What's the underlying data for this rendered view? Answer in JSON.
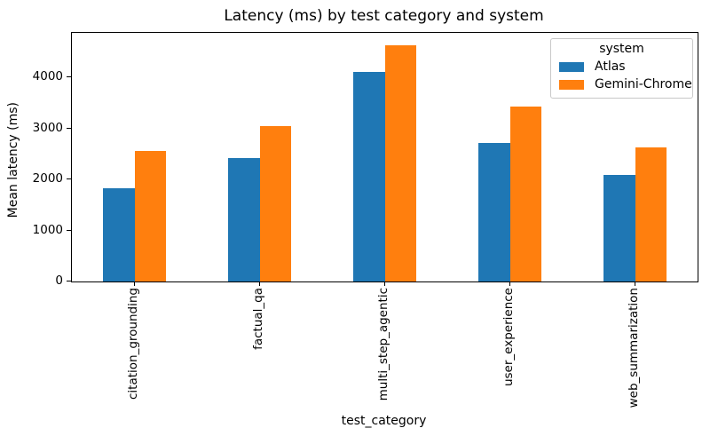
{
  "chart_data": {
    "type": "bar",
    "title": "Latency (ms) by test category and system",
    "xlabel": "test_category",
    "ylabel": "Mean latency (ms)",
    "categories": [
      "citation_grounding",
      "factual_qa",
      "multi_step_agentic",
      "user_experience",
      "web_summarization"
    ],
    "series": [
      {
        "name": "Atlas",
        "color": "#1f77b4",
        "values": [
          1830,
          2420,
          4100,
          2710,
          2090
        ]
      },
      {
        "name": "Gemini-Chrome",
        "color": "#ff7f0e",
        "values": [
          2550,
          3050,
          4620,
          3430,
          2630
        ]
      }
    ],
    "ylim": [
      0,
      4870
    ],
    "yticks": [
      0,
      1000,
      2000,
      3000,
      4000
    ],
    "grid": false,
    "legend": {
      "title": "system",
      "position": "upper right"
    }
  }
}
